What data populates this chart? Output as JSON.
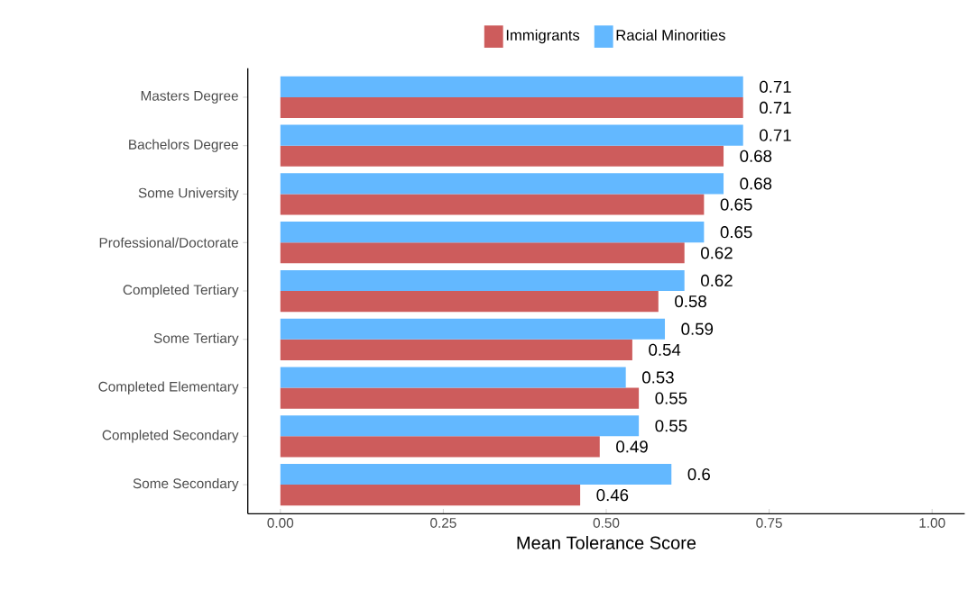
{
  "chart_data": {
    "type": "bar",
    "orientation": "horizontal",
    "xlabel": "Mean Tolerance Score",
    "categories": [
      "Masters Degree",
      "Bachelors Degree",
      "Some University",
      "Professional/Doctorate",
      "Completed Tertiary",
      "Some Tertiary",
      "Completed Elementary",
      "Completed Secondary",
      "Some Secondary"
    ],
    "series": [
      {
        "name": "Immigrants",
        "color": "#cd5c5c",
        "values": [
          0.71,
          0.68,
          0.65,
          0.62,
          0.58,
          0.54,
          0.55,
          0.49,
          0.46
        ]
      },
      {
        "name": "Racial Minorities",
        "color": "#63b8ff",
        "values": [
          0.71,
          0.71,
          0.68,
          0.65,
          0.62,
          0.59,
          0.53,
          0.55,
          0.6
        ]
      }
    ],
    "xlim": [
      -0.05,
      1.05
    ],
    "xticks": [
      {
        "value": 0,
        "label": "0.00"
      },
      {
        "value": 0.25,
        "label": "0.25"
      },
      {
        "value": 0.5,
        "label": "0.50"
      },
      {
        "value": 0.75,
        "label": "0.75"
      },
      {
        "value": 1,
        "label": "1.00"
      }
    ],
    "data_labels": true,
    "legend": "top",
    "grid": false
  }
}
